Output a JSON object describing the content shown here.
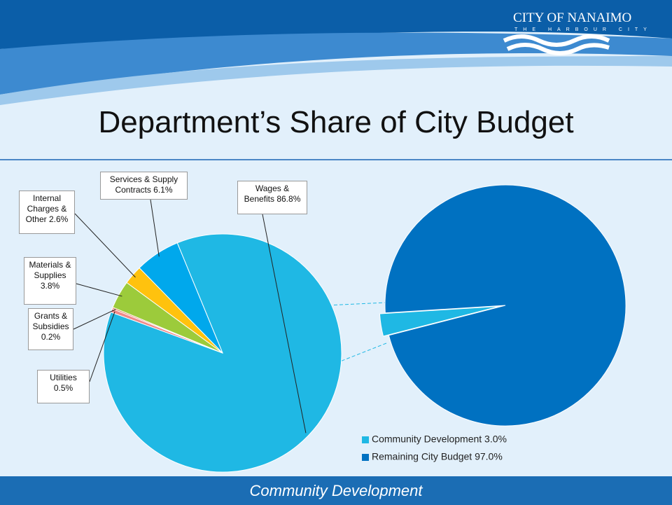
{
  "header": {
    "logo": "CITY OF NANAIMO",
    "tagline": "THE HARBOUR CITY"
  },
  "title": "Department’s Share of City Budget",
  "chart_data": [
    {
      "type": "pie",
      "labels": [
        "Wages & Benefits 86.8%",
        "Utilities 0.5%",
        "Grants & Subsidies 0.2%",
        "Materials & Supplies 3.8%",
        "Internal Charges & Other 2.6%",
        "Services & Supply Contracts 6.1%"
      ],
      "values": [
        86.8,
        0.5,
        0.2,
        3.8,
        2.6,
        6.1
      ],
      "colors": [
        "#1fb8e4",
        "#f08a8a",
        "#e06a3a",
        "#9ccb3b",
        "#ffc20e",
        "#00a8ec"
      ]
    },
    {
      "type": "pie",
      "labels": [
        "Community Development 3.0%",
        "Remaining City Budget 97.0%"
      ],
      "values": [
        3.0,
        97.0
      ],
      "colors": [
        "#1fb8e4",
        "#0071c1"
      ],
      "legend": "bottom"
    }
  ],
  "footer": "Community Development"
}
